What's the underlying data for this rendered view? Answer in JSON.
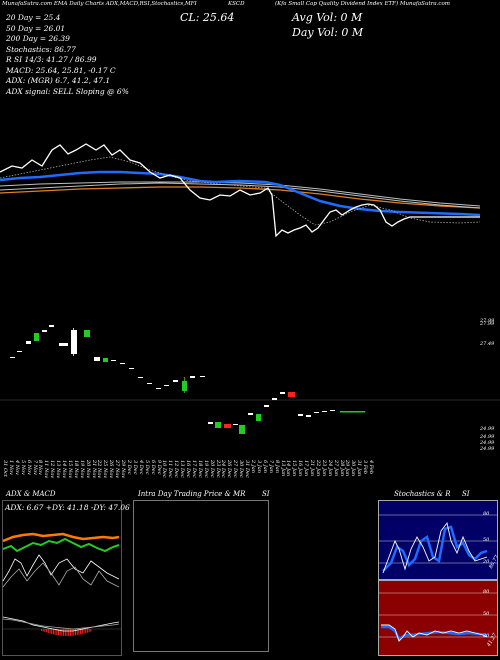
{
  "header": {
    "top_left": "MunafaSutra.com EMA Daily Charts ADX,MACD,RSI,Stochastics,MFI",
    "cl_text": "CL: 25.64",
    "symbol": "KSCD",
    "right_title": "(Kfa Small Cap Quality Dividend Index ETF) MunafaSutra.com",
    "avg_vol": "Avg Vol: 0  M",
    "day_vol": "Day Vol: 0  M",
    "indicators": [
      "20  Day = 25.4",
      "50  Day = 26.01",
      "200  Day = 26.39",
      "Stochastics: 86.77",
      "R          SI 14/3: 41.27 / 86.99",
      "MACD: 25.64,  25.81,  -0.17 C"
    ],
    "adx_line": "ADX:                         (MGR) 6.7,  41.2,  47.1",
    "signal_line": "ADX  signal: SELL  Sloping @ 6%"
  },
  "price_axis": {
    "labels": [
      "27.99",
      "27.49",
      "24.99",
      "24.99",
      "24.99",
      "24.99"
    ]
  },
  "date_axis": {
    "labels": [
      "31 Oct",
      "1 Nov",
      "4 Nov",
      "5 Nov",
      "6 Nov",
      "7 Nov",
      "8 Nov",
      "11 Nov",
      "12 Nov",
      "13 Nov",
      "14 Nov",
      "15 Nov",
      "18 Nov",
      "19 Nov",
      "20 Nov",
      "21 Nov",
      "22 Nov",
      "25 Nov",
      "26 Nov",
      "27 Nov",
      "29 Nov",
      "2 Dec",
      "3 Dec",
      "4 Dec",
      "5 Dec",
      "6 Dec",
      "9 Dec",
      "10 Dec",
      "11 Dec",
      "12 Dec",
      "13 Dec",
      "16 Dec",
      "17 Dec",
      "18 Dec",
      "19 Dec",
      "20 Dec",
      "23 Dec",
      "24 Dec",
      "26 Dec",
      "27 Dec",
      "30 Dec",
      "31 Dec",
      "2 Jan",
      "3 Jan",
      "6 Jan",
      "7 Jan",
      "8 Jan",
      "13 Jan",
      "14 Jan",
      "15 Jan",
      "16 Jan",
      "17 Jan",
      "21 Jan",
      "22 Jan",
      "23 Jan",
      "24 Jan",
      "27 Jan",
      "28 Jan",
      "29 Jan",
      "30 Jan",
      "31 Jan",
      "3 Feb",
      "4 Feb"
    ]
  },
  "panels": {
    "adx_macd": {
      "title": "ADX  & MACD",
      "values": "ADX: 6.67  +DY: 41.18  -DY: 47.06"
    },
    "intraday": {
      "title": "Intra  Day Trading Price  & MR",
      "suffix": "SI"
    },
    "stoch": {
      "title": "Stochastics & R",
      "suffix": "SI",
      "ticks_top": [
        "80",
        "50",
        "20"
      ],
      "ticks_bottom": [
        "80",
        "50",
        "20"
      ],
      "stoch_value": "86.77",
      "rsi_value": "41.27"
    }
  },
  "colors": {
    "ema20": "#ffffff",
    "ema50": "#1e6bff",
    "ema200_a": "#e08020",
    "ema200_b": "#c0c0c0",
    "bull": "#22cc22",
    "bear": "#ff2020",
    "neutral": "#ffffff",
    "macd": "#ff7a00",
    "stoch_bg": "#000066",
    "rsi_bg": "#8b0000"
  }
}
